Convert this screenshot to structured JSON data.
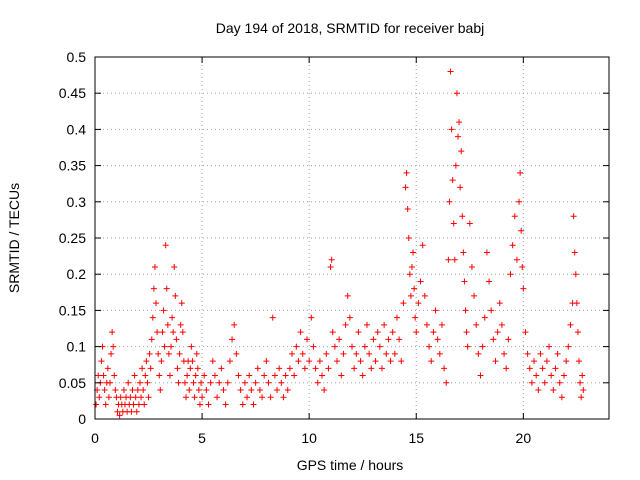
{
  "chart_data": {
    "type": "scatter",
    "title": "Day 194 of 2018, SRMTID for receiver babj",
    "xlabel": "GPS time / hours",
    "ylabel": "SRMTID / TECUs",
    "xlim": [
      0,
      24
    ],
    "ylim": [
      0,
      0.5
    ],
    "xticks": [
      0,
      5,
      10,
      15,
      20
    ],
    "xtick_labels": [
      "0",
      "5",
      "10",
      "15",
      "20"
    ],
    "yticks": [
      0,
      0.05,
      0.1,
      0.15,
      0.2,
      0.25,
      0.3,
      0.35,
      0.4,
      0.45,
      0.5
    ],
    "ytick_labels": [
      "0",
      "0.05",
      "0.1",
      "0.15",
      "0.2",
      "0.25",
      "0.3",
      "0.35",
      "0.4",
      "0.45",
      "0.5"
    ],
    "grid": true,
    "marker": "+",
    "color": "#ff0000",
    "series": [
      {
        "name": "SRMTID",
        "points": [
          [
            0.05,
            0.02
          ],
          [
            0.1,
            0.04
          ],
          [
            0.15,
            0.06
          ],
          [
            0.2,
            0.03
          ],
          [
            0.25,
            0.05
          ],
          [
            0.3,
            0.08
          ],
          [
            0.35,
            0.1
          ],
          [
            0.4,
            0.06
          ],
          [
            0.45,
            0.04
          ],
          [
            0.5,
            0.02
          ],
          [
            0.55,
            0.05
          ],
          [
            0.6,
            0.07
          ],
          [
            0.65,
            0.03
          ],
          [
            0.7,
            0.05
          ],
          [
            0.75,
            0.09
          ],
          [
            0.8,
            0.12
          ],
          [
            0.85,
            0.1
          ],
          [
            0.9,
            0.06
          ],
          [
            0.95,
            0.04
          ],
          [
            1.0,
            0.03
          ],
          [
            1.05,
            0.01
          ],
          [
            1.1,
            0.02
          ],
          [
            1.15,
            0.005
          ],
          [
            1.2,
            0.03
          ],
          [
            1.25,
            0.02
          ],
          [
            1.3,
            0.01
          ],
          [
            1.35,
            0.04
          ],
          [
            1.4,
            0.02
          ],
          [
            1.45,
            0.03
          ],
          [
            1.5,
            0.01
          ],
          [
            1.55,
            0.05
          ],
          [
            1.6,
            0.02
          ],
          [
            1.65,
            0.03
          ],
          [
            1.7,
            0.01
          ],
          [
            1.75,
            0.04
          ],
          [
            1.8,
            0.02
          ],
          [
            1.85,
            0.06
          ],
          [
            1.9,
            0.03
          ],
          [
            1.95,
            0.01
          ],
          [
            2.0,
            0.04
          ],
          [
            2.05,
            0.02
          ],
          [
            2.1,
            0.05
          ],
          [
            2.15,
            0.03
          ],
          [
            2.2,
            0.07
          ],
          [
            2.25,
            0.04
          ],
          [
            2.3,
            0.02
          ],
          [
            2.35,
            0.06
          ],
          [
            2.4,
            0.08
          ],
          [
            2.45,
            0.05
          ],
          [
            2.5,
            0.03
          ],
          [
            2.55,
            0.09
          ],
          [
            2.6,
            0.07
          ],
          [
            2.65,
            0.11
          ],
          [
            2.7,
            0.14
          ],
          [
            2.75,
            0.18
          ],
          [
            2.8,
            0.21
          ],
          [
            2.85,
            0.16
          ],
          [
            2.9,
            0.12
          ],
          [
            2.95,
            0.09
          ],
          [
            3.0,
            0.06
          ],
          [
            3.05,
            0.04
          ],
          [
            3.1,
            0.08
          ],
          [
            3.15,
            0.12
          ],
          [
            3.2,
            0.15
          ],
          [
            3.25,
            0.1
          ],
          [
            3.3,
            0.24
          ],
          [
            3.35,
            0.18
          ],
          [
            3.4,
            0.13
          ],
          [
            3.45,
            0.09
          ],
          [
            3.5,
            0.06
          ],
          [
            3.55,
            0.1
          ],
          [
            3.6,
            0.14
          ],
          [
            3.65,
            0.12
          ],
          [
            3.7,
            0.21
          ],
          [
            3.75,
            0.17
          ],
          [
            3.8,
            0.11
          ],
          [
            3.85,
            0.07
          ],
          [
            3.9,
            0.05
          ],
          [
            3.95,
            0.09
          ],
          [
            4.0,
            0.13
          ],
          [
            4.05,
            0.16
          ],
          [
            4.1,
            0.12
          ],
          [
            4.15,
            0.08
          ],
          [
            4.2,
            0.05
          ],
          [
            4.25,
            0.03
          ],
          [
            4.3,
            0.06
          ],
          [
            4.35,
            0.08
          ],
          [
            4.4,
            0.04
          ],
          [
            4.45,
            0.07
          ],
          [
            4.5,
            0.1
          ],
          [
            4.55,
            0.08
          ],
          [
            4.6,
            0.05
          ],
          [
            4.65,
            0.03
          ],
          [
            4.7,
            0.06
          ],
          [
            4.75,
            0.09
          ],
          [
            4.8,
            0.07
          ],
          [
            4.85,
            0.04
          ],
          [
            4.9,
            0.02
          ],
          [
            4.95,
            0.05
          ],
          [
            5.0,
            0.03
          ],
          [
            5.1,
            0.06
          ],
          [
            5.2,
            0.04
          ],
          [
            5.3,
            0.02
          ],
          [
            5.4,
            0.05
          ],
          [
            5.5,
            0.08
          ],
          [
            5.6,
            0.06
          ],
          [
            5.7,
            0.03
          ],
          [
            5.8,
            0.05
          ],
          [
            5.9,
            0.07
          ],
          [
            6.0,
            0.04
          ],
          [
            6.1,
            0.02
          ],
          [
            6.2,
            0.05
          ],
          [
            6.3,
            0.08
          ],
          [
            6.4,
            0.11
          ],
          [
            6.5,
            0.13
          ],
          [
            6.6,
            0.09
          ],
          [
            6.7,
            0.06
          ],
          [
            6.8,
            0.04
          ],
          [
            6.9,
            0.02
          ],
          [
            7.0,
            0.05
          ],
          [
            7.1,
            0.03
          ],
          [
            7.2,
            0.06
          ],
          [
            7.3,
            0.04
          ],
          [
            7.4,
            0.02
          ],
          [
            7.5,
            0.05
          ],
          [
            7.6,
            0.07
          ],
          [
            7.7,
            0.04
          ],
          [
            7.8,
            0.03
          ],
          [
            7.9,
            0.06
          ],
          [
            8.0,
            0.08
          ],
          [
            8.1,
            0.05
          ],
          [
            8.2,
            0.03
          ],
          [
            8.3,
            0.14
          ],
          [
            8.4,
            0.06
          ],
          [
            8.5,
            0.04
          ],
          [
            8.6,
            0.07
          ],
          [
            8.7,
            0.05
          ],
          [
            8.8,
            0.03
          ],
          [
            8.9,
            0.06
          ],
          [
            9.0,
            0.04
          ],
          [
            9.1,
            0.07
          ],
          [
            9.2,
            0.09
          ],
          [
            9.3,
            0.06
          ],
          [
            9.4,
            0.1
          ],
          [
            9.5,
            0.08
          ],
          [
            9.6,
            0.12
          ],
          [
            9.7,
            0.09
          ],
          [
            9.8,
            0.07
          ],
          [
            9.9,
            0.11
          ],
          [
            10.0,
            0.08
          ],
          [
            10.1,
            0.14
          ],
          [
            10.2,
            0.1
          ],
          [
            10.3,
            0.07
          ],
          [
            10.4,
            0.05
          ],
          [
            10.5,
            0.08
          ],
          [
            10.6,
            0.06
          ],
          [
            10.7,
            0.04
          ],
          [
            10.8,
            0.09
          ],
          [
            10.9,
            0.07
          ],
          [
            11.0,
            0.21
          ],
          [
            11.05,
            0.22
          ],
          [
            11.1,
            0.12
          ],
          [
            11.2,
            0.1
          ],
          [
            11.3,
            0.08
          ],
          [
            11.4,
            0.11
          ],
          [
            11.5,
            0.06
          ],
          [
            11.6,
            0.09
          ],
          [
            11.7,
            0.13
          ],
          [
            11.8,
            0.17
          ],
          [
            11.9,
            0.14
          ],
          [
            12.0,
            0.1
          ],
          [
            12.1,
            0.07
          ],
          [
            12.2,
            0.09
          ],
          [
            12.3,
            0.12
          ],
          [
            12.4,
            0.08
          ],
          [
            12.5,
            0.06
          ],
          [
            12.6,
            0.1
          ],
          [
            12.7,
            0.13
          ],
          [
            12.8,
            0.09
          ],
          [
            12.9,
            0.07
          ],
          [
            13.0,
            0.11
          ],
          [
            13.1,
            0.08
          ],
          [
            13.2,
            0.12
          ],
          [
            13.3,
            0.1
          ],
          [
            13.4,
            0.07
          ],
          [
            13.5,
            0.13
          ],
          [
            13.6,
            0.09
          ],
          [
            13.7,
            0.11
          ],
          [
            13.8,
            0.08
          ],
          [
            13.9,
            0.12
          ],
          [
            14.0,
            0.09
          ],
          [
            14.1,
            0.14
          ],
          [
            14.2,
            0.11
          ],
          [
            14.3,
            0.08
          ],
          [
            14.4,
            0.16
          ],
          [
            14.5,
            0.32
          ],
          [
            14.55,
            0.34
          ],
          [
            14.6,
            0.29
          ],
          [
            14.65,
            0.25
          ],
          [
            14.7,
            0.2
          ],
          [
            14.75,
            0.17
          ],
          [
            14.8,
            0.21
          ],
          [
            14.85,
            0.23
          ],
          [
            14.9,
            0.18
          ],
          [
            14.95,
            0.14
          ],
          [
            15.0,
            0.12
          ],
          [
            15.1,
            0.16
          ],
          [
            15.2,
            0.19
          ],
          [
            15.3,
            0.24
          ],
          [
            15.4,
            0.17
          ],
          [
            15.5,
            0.13
          ],
          [
            15.6,
            0.1
          ],
          [
            15.7,
            0.08
          ],
          [
            15.8,
            0.12
          ],
          [
            15.9,
            0.15
          ],
          [
            16.0,
            0.11
          ],
          [
            16.1,
            0.09
          ],
          [
            16.2,
            0.13
          ],
          [
            16.3,
            0.07
          ],
          [
            16.4,
            0.05
          ],
          [
            16.5,
            0.22
          ],
          [
            16.55,
            0.3
          ],
          [
            16.6,
            0.48
          ],
          [
            16.65,
            0.4
          ],
          [
            16.7,
            0.33
          ],
          [
            16.75,
            0.27
          ],
          [
            16.8,
            0.22
          ],
          [
            16.85,
            0.35
          ],
          [
            16.9,
            0.45
          ],
          [
            16.95,
            0.39
          ],
          [
            17.0,
            0.41
          ],
          [
            17.05,
            0.32
          ],
          [
            17.1,
            0.37
          ],
          [
            17.15,
            0.28
          ],
          [
            17.2,
            0.23
          ],
          [
            17.25,
            0.19
          ],
          [
            17.3,
            0.15
          ],
          [
            17.35,
            0.12
          ],
          [
            17.4,
            0.1
          ],
          [
            17.5,
            0.27
          ],
          [
            17.6,
            0.21
          ],
          [
            17.7,
            0.17
          ],
          [
            17.8,
            0.13
          ],
          [
            17.9,
            0.09
          ],
          [
            18.0,
            0.06
          ],
          [
            18.1,
            0.1
          ],
          [
            18.2,
            0.14
          ],
          [
            18.3,
            0.23
          ],
          [
            18.4,
            0.19
          ],
          [
            18.5,
            0.15
          ],
          [
            18.6,
            0.11
          ],
          [
            18.7,
            0.08
          ],
          [
            18.8,
            0.12
          ],
          [
            18.9,
            0.16
          ],
          [
            19.0,
            0.13
          ],
          [
            19.1,
            0.09
          ],
          [
            19.2,
            0.07
          ],
          [
            19.3,
            0.11
          ],
          [
            19.4,
            0.2
          ],
          [
            19.5,
            0.24
          ],
          [
            19.6,
            0.28
          ],
          [
            19.7,
            0.22
          ],
          [
            19.8,
            0.3
          ],
          [
            19.85,
            0.34
          ],
          [
            19.9,
            0.26
          ],
          [
            19.95,
            0.21
          ],
          [
            20.0,
            0.18
          ],
          [
            20.1,
            0.12
          ],
          [
            20.2,
            0.09
          ],
          [
            20.3,
            0.07
          ],
          [
            20.4,
            0.05
          ],
          [
            20.5,
            0.08
          ],
          [
            20.6,
            0.06
          ],
          [
            20.7,
            0.04
          ],
          [
            20.8,
            0.09
          ],
          [
            20.9,
            0.07
          ],
          [
            21.0,
            0.05
          ],
          [
            21.1,
            0.08
          ],
          [
            21.2,
            0.1
          ],
          [
            21.3,
            0.06
          ],
          [
            21.4,
            0.04
          ],
          [
            21.5,
            0.07
          ],
          [
            21.6,
            0.09
          ],
          [
            21.7,
            0.05
          ],
          [
            21.8,
            0.03
          ],
          [
            21.9,
            0.06
          ],
          [
            22.0,
            0.08
          ],
          [
            22.1,
            0.1
          ],
          [
            22.2,
            0.13
          ],
          [
            22.3,
            0.16
          ],
          [
            22.35,
            0.28
          ],
          [
            22.4,
            0.23
          ],
          [
            22.45,
            0.2
          ],
          [
            22.5,
            0.16
          ],
          [
            22.55,
            0.12
          ],
          [
            22.6,
            0.08
          ],
          [
            22.65,
            0.05
          ],
          [
            22.7,
            0.03
          ],
          [
            22.75,
            0.06
          ],
          [
            22.8,
            0.04
          ]
        ]
      }
    ]
  }
}
